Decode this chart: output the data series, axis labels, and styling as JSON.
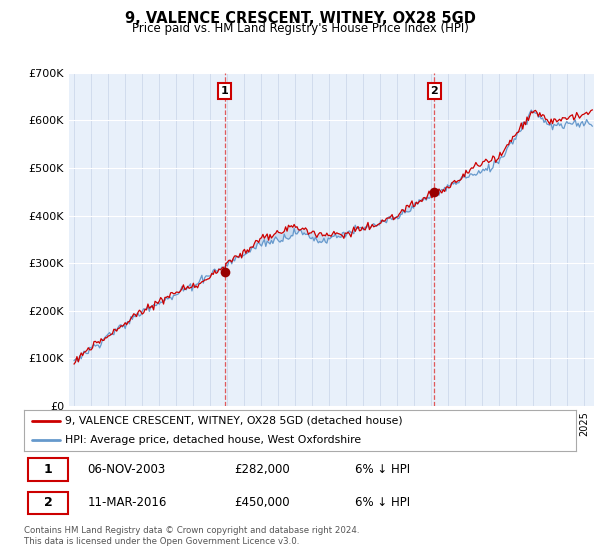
{
  "title": "9, VALENCE CRESCENT, WITNEY, OX28 5GD",
  "subtitle": "Price paid vs. HM Land Registry's House Price Index (HPI)",
  "ylim": [
    0,
    700000
  ],
  "yticks": [
    0,
    100000,
    200000,
    300000,
    400000,
    500000,
    600000,
    700000
  ],
  "ytick_labels": [
    "£0",
    "£100K",
    "£200K",
    "£300K",
    "£400K",
    "£500K",
    "£600K",
    "£700K"
  ],
  "fig_bg_color": "#ffffff",
  "plot_bg_color": "#e8f0fa",
  "grid_color": "#c8d4e8",
  "fill_color": "#c8daf0",
  "legend_label_red": "9, VALENCE CRESCENT, WITNEY, OX28 5GD (detached house)",
  "legend_label_blue": "HPI: Average price, detached house, West Oxfordshire",
  "marker1_year": 2003.854,
  "marker1_price": 282000,
  "marker2_year": 2016.208,
  "marker2_price": 450000,
  "footer": "Contains HM Land Registry data © Crown copyright and database right 2024.\nThis data is licensed under the Open Government Licence v3.0.",
  "red_color": "#cc0000",
  "blue_color": "#6699cc",
  "start_year": 1995.0,
  "end_year": 2025.5,
  "seed_hpi": 7,
  "seed_red": 99
}
